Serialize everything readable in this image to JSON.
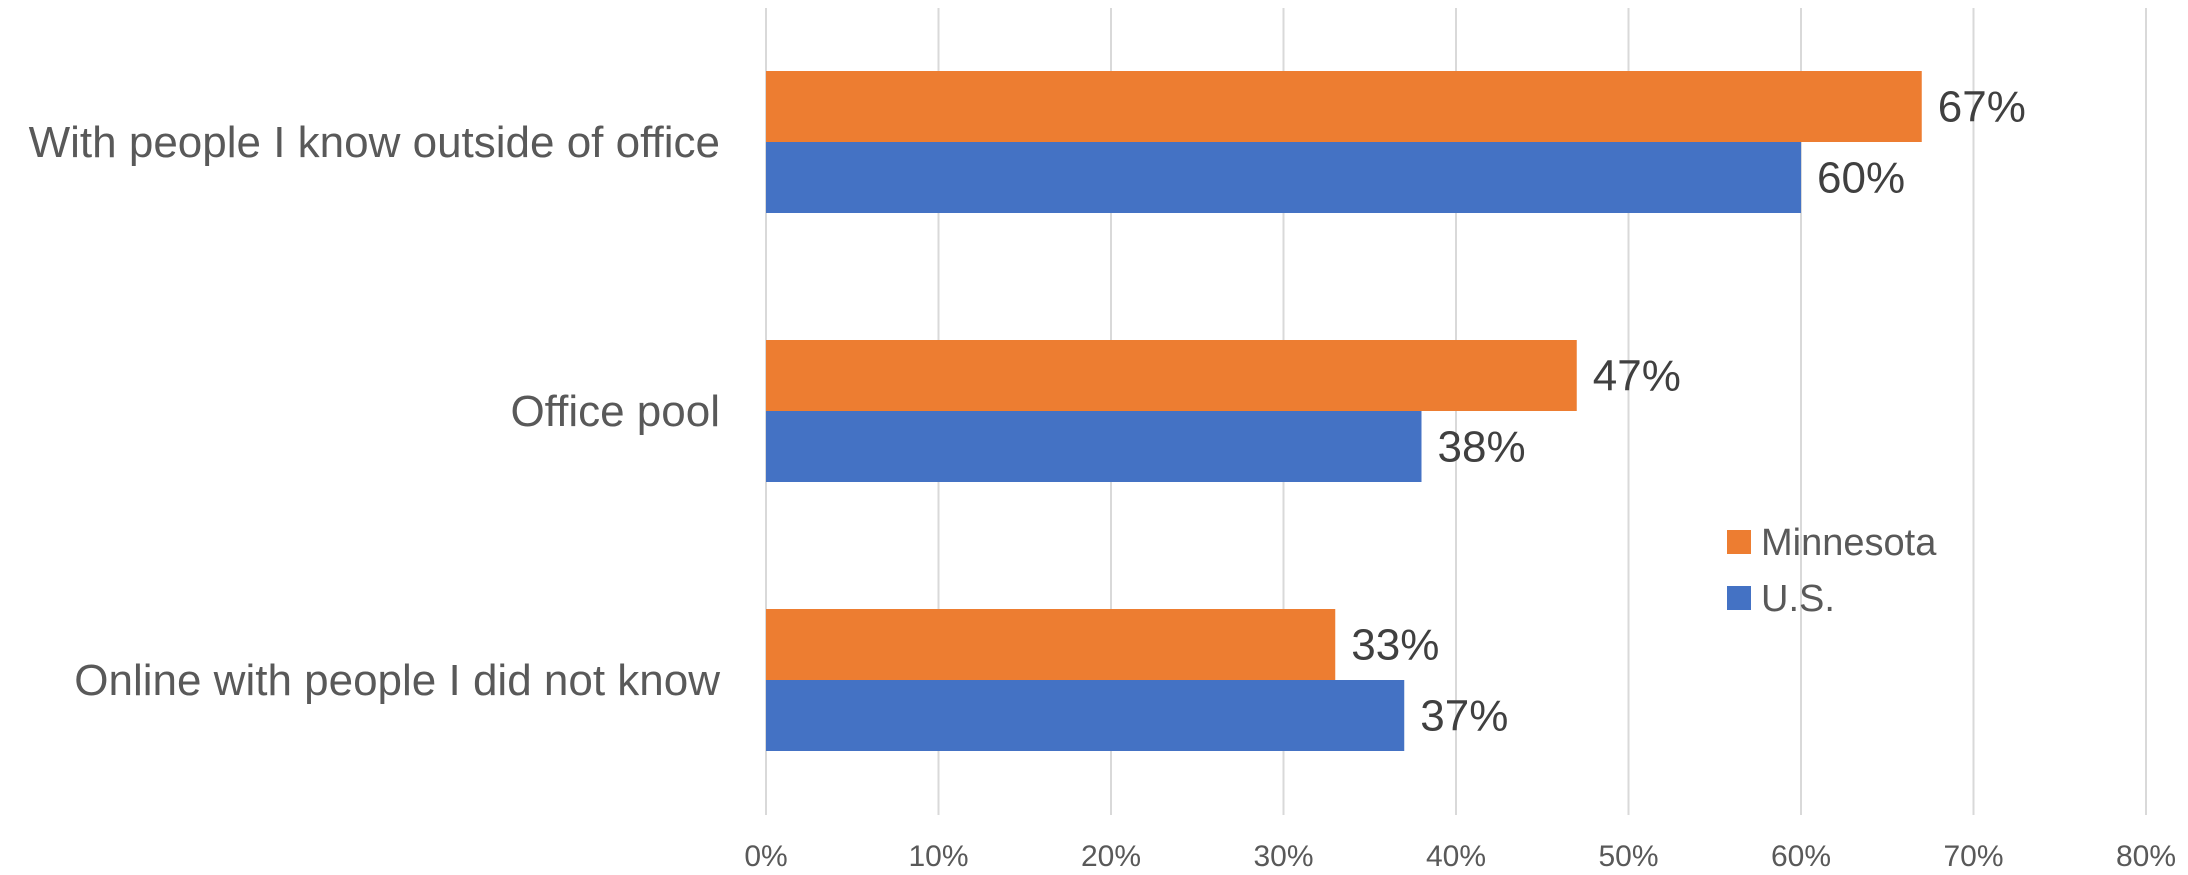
{
  "chart_data": {
    "type": "bar",
    "orientation": "horizontal",
    "categories": [
      "With people I know outside of office",
      "Office pool",
      "Online with people I did not know"
    ],
    "series": [
      {
        "name": "Minnesota",
        "color": "#ED7D31",
        "values": [
          67,
          47,
          33
        ],
        "labels": [
          "67%",
          "47%",
          "33%"
        ]
      },
      {
        "name": "U.S.",
        "color": "#4472C4",
        "values": [
          60,
          38,
          37
        ],
        "labels": [
          "60%",
          "38%",
          "37%"
        ]
      }
    ],
    "xlim": [
      0,
      80
    ],
    "xticks": [
      0,
      10,
      20,
      30,
      40,
      50,
      60,
      70,
      80
    ],
    "xtick_labels": [
      "0%",
      "10%",
      "20%",
      "30%",
      "40%",
      "50%",
      "60%",
      "70%",
      "80%"
    ],
    "grid": "vertical",
    "legend_position": "right",
    "title": "",
    "xlabel": "",
    "ylabel": ""
  }
}
